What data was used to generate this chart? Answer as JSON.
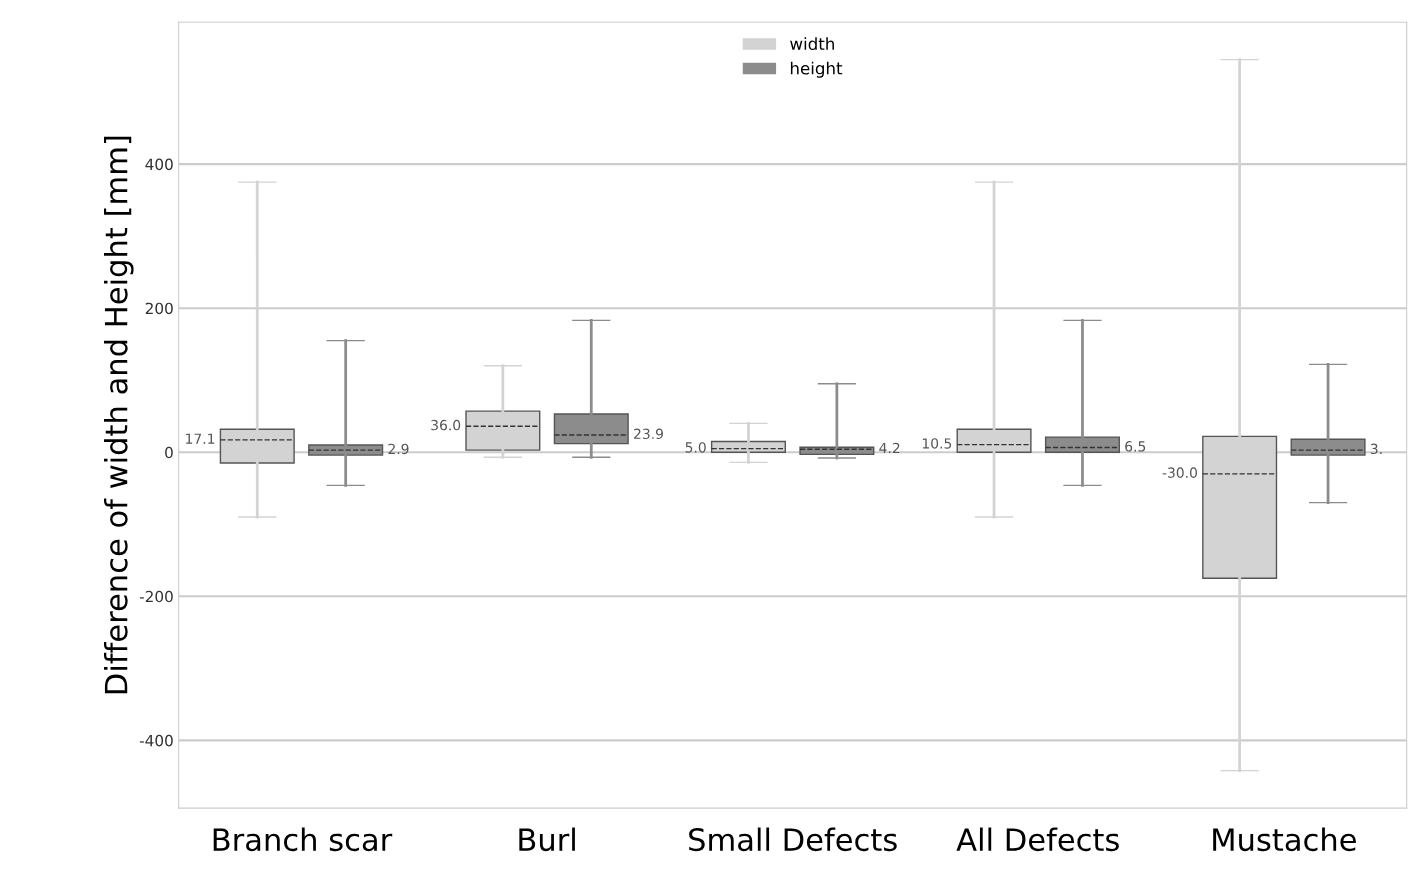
{
  "chart_data": {
    "type": "box",
    "ylabel": "Difference of width and Height [mm]",
    "categories": [
      "Branch scar",
      "Burl",
      "Small Defects",
      "All Defects",
      "Mustache"
    ],
    "series": [
      {
        "name": "width",
        "color": "#d3d3d3",
        "boxes": [
          {
            "low": -90,
            "q1": -15,
            "median": 17.1,
            "q3": 32,
            "high": 375
          },
          {
            "low": -7,
            "q1": 3,
            "median": 36.0,
            "q3": 57,
            "high": 120
          },
          {
            "low": -14,
            "q1": 0,
            "median": 5.0,
            "q3": 15,
            "high": 40
          },
          {
            "low": -90,
            "q1": 0,
            "median": 10.5,
            "q3": 32,
            "high": 375
          },
          {
            "low": -442,
            "q1": -175,
            "median": -30.0,
            "q3": 22,
            "high": 545
          }
        ]
      },
      {
        "name": "height",
        "color": "#8c8c8c",
        "boxes": [
          {
            "low": -46,
            "q1": -4,
            "median": 2.9,
            "q3": 10,
            "high": 155
          },
          {
            "low": -7,
            "q1": 12,
            "median": 23.9,
            "q3": 53,
            "high": 183
          },
          {
            "low": -8,
            "q1": -3,
            "median": 4.2,
            "q3": 7,
            "high": 95
          },
          {
            "low": -46,
            "q1": 0,
            "median": 6.5,
            "q3": 21,
            "high": 183
          },
          {
            "low": -70,
            "q1": -4,
            "median": 3,
            "q3": 18,
            "high": 122
          }
        ]
      }
    ],
    "annotations": [
      "17.1",
      "2.9",
      "36.0",
      "23.9",
      "5.0",
      "4.2",
      "10.5",
      "6.5",
      "-30.0",
      "3."
    ],
    "ylim": [
      -494,
      597
    ],
    "yticks": [
      -400,
      -200,
      0,
      200,
      400
    ],
    "grid": "y",
    "legend": "top"
  }
}
